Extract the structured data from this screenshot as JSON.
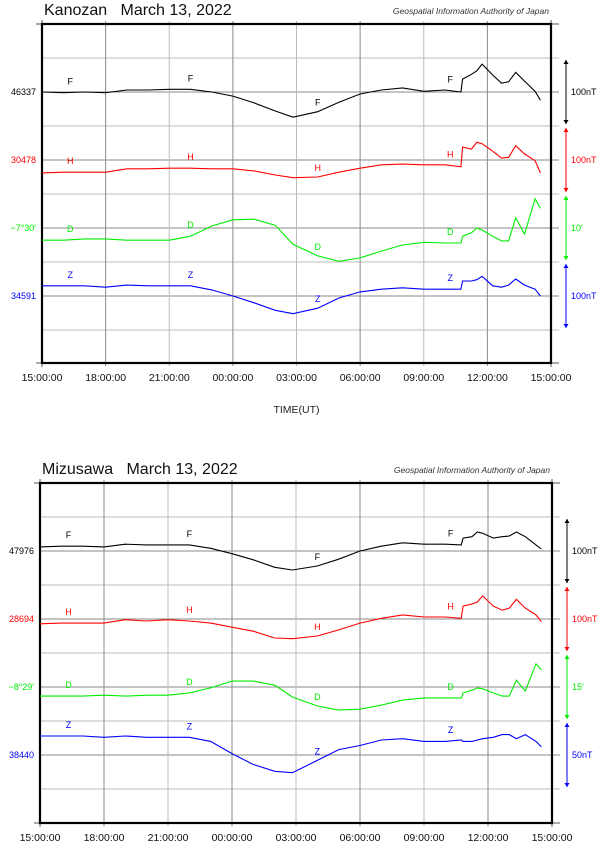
{
  "chart_data": [
    {
      "type": "line",
      "title": "Kanozan   March 13, 2022",
      "credit": "Geospatial Information Authority of Japan",
      "xlabel": "TIME(UT)",
      "x_tick_labels": [
        "15:00:00",
        "18:00:00",
        "21:00:00",
        "00:00:00",
        "03:00:00",
        "06:00:00",
        "09:00:00",
        "12:00:00",
        "15:00:00"
      ],
      "xlim": [
        "15:00",
        "15:00 (+1 day)"
      ],
      "grid": true,
      "x": [
        "15:00",
        "16:00",
        "17:00",
        "18:00",
        "19:00",
        "20:00",
        "21:00",
        "22:00",
        "23:00",
        "00:00",
        "01:00",
        "02:00",
        "02:50",
        "04:00",
        "05:00",
        "06:00",
        "07:00",
        "08:00",
        "09:00",
        "10:00",
        "10:45",
        "10:50",
        "11:15",
        "11:30",
        "11:45",
        "12:15",
        "12:40",
        "13:00",
        "13:20",
        "13:45",
        "14:15",
        "14:30"
      ],
      "series": [
        {
          "name": "F",
          "color": "#000000",
          "baseline_label": "46337",
          "baseline": 46337,
          "scale_label": "100nT",
          "scale": 100,
          "values": [
            46337,
            46336,
            46337,
            46336,
            46340,
            46340,
            46341,
            46341,
            46337,
            46331,
            46321,
            46309,
            46300,
            46308,
            46322,
            46334,
            46340,
            46343,
            46338,
            46340,
            46337,
            46356,
            46363,
            46368,
            46378,
            46362,
            46350,
            46352,
            46366,
            46353,
            46338,
            46325
          ]
        },
        {
          "name": "H",
          "color": "#ff0000",
          "baseline_label": "30478",
          "baseline": 30478,
          "scale_label": "100nT",
          "scale": 100,
          "values": [
            30459,
            30460,
            30460,
            30460,
            30465,
            30465,
            30466,
            30466,
            30465,
            30465,
            30462,
            30456,
            30452,
            30453,
            30460,
            30466,
            30471,
            30472,
            30471,
            30471,
            30468,
            30497,
            30494,
            30504,
            30502,
            30491,
            30481,
            30482,
            30499,
            30487,
            30477,
            30459
          ]
        },
        {
          "name": "D",
          "color": "#00ee00",
          "baseline_label": "−7°30′",
          "baseline": -450,
          "scale_label": "10′",
          "scale": 10,
          "unit": "arcmin",
          "values": [
            -451.8,
            -451.8,
            -451.6,
            -451.6,
            -451.8,
            -451.8,
            -451.8,
            -451.2,
            -449.7,
            -448.8,
            -448.7,
            -449.6,
            -452.4,
            -454.1,
            -454.9,
            -454.4,
            -453.4,
            -452.5,
            -452.1,
            -452.2,
            -452.2,
            -451.2,
            -450.7,
            -450.0,
            -450.3,
            -451.2,
            -451.9,
            -451.9,
            -448.5,
            -450.9,
            -445.7,
            -447.1
          ]
        },
        {
          "name": "Z",
          "color": "#0000ff",
          "baseline_label": "34591",
          "baseline": 34591,
          "scale_label": "100nT",
          "scale": 100,
          "values": [
            34606,
            34606,
            34606,
            34604,
            34607,
            34606,
            34606,
            34606,
            34600,
            34591,
            34581,
            34570,
            34565,
            34573,
            34588,
            34597,
            34601,
            34603,
            34601,
            34601,
            34601,
            34613,
            34613,
            34615,
            34620,
            34606,
            34604,
            34607,
            34616,
            34607,
            34601,
            34591
          ]
        }
      ]
    },
    {
      "type": "line",
      "title": "Mizusawa   March 13, 2022",
      "credit": "Geospatial Information Authority of Japan",
      "xlabel": "",
      "x_tick_labels": [
        "15:00:00",
        "18:00:00",
        "21:00:00",
        "00:00:00",
        "03:00:00",
        "06:00:00",
        "09:00:00",
        "12:00:00",
        "15:00:00"
      ],
      "xlim": [
        "15:00",
        "15:00 (+1 day)"
      ],
      "grid": true,
      "x": [
        "15:00",
        "16:00",
        "17:00",
        "18:00",
        "19:00",
        "20:00",
        "21:00",
        "22:00",
        "23:00",
        "00:00",
        "01:00",
        "02:00",
        "02:50",
        "04:00",
        "05:00",
        "06:00",
        "07:00",
        "08:00",
        "09:00",
        "10:00",
        "10:45",
        "10:50",
        "11:15",
        "11:30",
        "11:45",
        "12:15",
        "12:40",
        "13:00",
        "13:20",
        "13:45",
        "14:15",
        "14:30"
      ],
      "series": [
        {
          "name": "F",
          "color": "#000000",
          "baseline_label": "47976",
          "baseline": 47976,
          "scale_label": "100nT",
          "scale": 100,
          "values": [
            47982,
            47983,
            47983,
            47982,
            47986,
            47985,
            47985,
            47985,
            47980,
            47972,
            47963,
            47952,
            47948,
            47954,
            47964,
            47976,
            47983,
            47988,
            47986,
            47986,
            47985,
            47995,
            47997,
            48004,
            48002,
            47995,
            47997,
            47998,
            48004,
            47997,
            47985,
            47979
          ]
        },
        {
          "name": "H",
          "color": "#ff0000",
          "baseline_label": "28694",
          "baseline": 28694,
          "scale_label": "100nT",
          "scale": 100,
          "values": [
            28687,
            28688,
            28688,
            28688,
            28693,
            28691,
            28693,
            28691,
            28688,
            28682,
            28676,
            28666,
            28665,
            28669,
            28678,
            28688,
            28695,
            28700,
            28697,
            28697,
            28695,
            28713,
            28716,
            28719,
            28728,
            28713,
            28707,
            28710,
            28723,
            28710,
            28700,
            28690
          ]
        },
        {
          "name": "D",
          "color": "#00ee00",
          "baseline_label": "−8°29′",
          "baseline": -509,
          "scale_label": "15′",
          "scale": 15,
          "unit": "arcmin",
          "values": [
            -511.0,
            -511.0,
            -511.0,
            -510.8,
            -511.0,
            -510.8,
            -510.8,
            -510.3,
            -509.2,
            -507.7,
            -507.7,
            -508.6,
            -511.2,
            -513.2,
            -514.1,
            -513.9,
            -513.0,
            -511.9,
            -511.4,
            -511.4,
            -511.4,
            -510.3,
            -509.7,
            -509.2,
            -509.4,
            -510.3,
            -511.0,
            -511.0,
            -507.5,
            -509.9,
            -503.9,
            -505.2
          ]
        },
        {
          "name": "Z",
          "color": "#0000ff",
          "baseline_label": "38440",
          "baseline": 38440,
          "scale_label": "50nT",
          "scale": 50,
          "values": [
            38454,
            38454,
            38454,
            38453,
            38454,
            38453,
            38453,
            38453,
            38450,
            38441,
            38433,
            38428,
            38427,
            38436,
            38444,
            38447,
            38451,
            38452,
            38450,
            38450,
            38451,
            38450,
            38450,
            38451,
            38452,
            38453,
            38455,
            38455,
            38452,
            38455,
            38450,
            38446
          ]
        }
      ]
    }
  ]
}
